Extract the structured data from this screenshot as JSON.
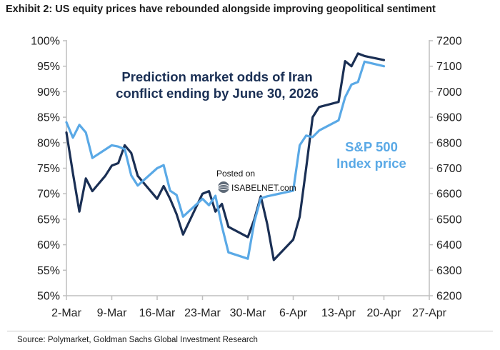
{
  "page": {
    "title": "Exhibit 2: US equity prices have rebounded alongside improving geopolitical sentiment",
    "source": "Source: Polymarket, Goldman Sachs Global Investment Research",
    "watermark": {
      "line1": "Posted on",
      "line2": "ISABELNET.com"
    }
  },
  "chart_data": {
    "type": "line",
    "title": "",
    "xlabel": "",
    "ylabel": "",
    "x_ticks": [
      "2-Mar",
      "9-Mar",
      "16-Mar",
      "23-Mar",
      "30-Mar",
      "6-Apr",
      "13-Apr",
      "20-Apr",
      "27-Apr"
    ],
    "x_range_days_from_2_Mar": [
      0,
      56
    ],
    "y_left": {
      "ticks": [
        "50%",
        "55%",
        "60%",
        "65%",
        "70%",
        "75%",
        "80%",
        "85%",
        "90%",
        "95%",
        "100%"
      ],
      "range": [
        50,
        100
      ],
      "unit": "%"
    },
    "y_right": {
      "ticks": [
        "6200",
        "6300",
        "6400",
        "6500",
        "6600",
        "6700",
        "6800",
        "6900",
        "7000",
        "7100",
        "7200"
      ],
      "range": [
        6200,
        7200
      ]
    },
    "grid": false,
    "annotations": [
      {
        "lines": [
          "Prediction market odds of Iran",
          "conflict ending by June 30, 2026"
        ],
        "series": 0
      },
      {
        "lines": [
          "S&P 500",
          "Index price"
        ],
        "series": 1
      }
    ],
    "series": [
      {
        "name": "Prediction market odds of Iran conflict ending by June 30, 2026",
        "axis": "left",
        "color": "#1a2f54",
        "x": [
          "2-Mar",
          "3-Mar",
          "4-Mar",
          "5-Mar",
          "6-Mar",
          "8-Mar",
          "9-Mar",
          "10-Mar",
          "11-Mar",
          "12-Mar",
          "13-Mar",
          "16-Mar",
          "17-Mar",
          "18-Mar",
          "19-Mar",
          "20-Mar",
          "23-Mar",
          "24-Mar",
          "25-Mar",
          "26-Mar",
          "27-Mar",
          "30-Mar",
          "31-Mar",
          "1-Apr",
          "2-Apr",
          "3-Apr",
          "6-Apr",
          "7-Apr",
          "8-Apr",
          "9-Apr",
          "10-Apr",
          "13-Apr",
          "14-Apr",
          "15-Apr",
          "16-Apr",
          "17-Apr",
          "20-Apr"
        ],
        "values": [
          82,
          74,
          66.5,
          73,
          70.5,
          73.5,
          75.5,
          76,
          79.5,
          78,
          73.5,
          69,
          71.5,
          69,
          66,
          62,
          70,
          70.5,
          66.5,
          68,
          63.5,
          61.5,
          65,
          69.5,
          64,
          57,
          61,
          65.5,
          75,
          85,
          87,
          88,
          96,
          95,
          97.5,
          97,
          96.2
        ]
      },
      {
        "name": "S&P 500 Index price",
        "axis": "right",
        "color": "#5aa9e6",
        "x": [
          "2-Mar",
          "3-Mar",
          "4-Mar",
          "5-Mar",
          "6-Mar",
          "9-Mar",
          "10-Mar",
          "11-Mar",
          "12-Mar",
          "13-Mar",
          "16-Mar",
          "17-Mar",
          "18-Mar",
          "19-Mar",
          "20-Mar",
          "23-Mar",
          "24-Mar",
          "25-Mar",
          "26-Mar",
          "27-Mar",
          "30-Mar",
          "31-Mar",
          "1-Apr",
          "2-Apr",
          "6-Apr",
          "7-Apr",
          "8-Apr",
          "9-Apr",
          "10-Apr",
          "13-Apr",
          "14-Apr",
          "15-Apr",
          "16-Apr",
          "17-Apr",
          "20-Apr"
        ],
        "values": [
          6880,
          6820,
          6870,
          6840,
          6740,
          6790,
          6785,
          6775,
          6672,
          6632,
          6700,
          6712,
          6612,
          6595,
          6510,
          6580,
          6555,
          6592,
          6472,
          6370,
          6345,
          6490,
          6582,
          6590,
          6612,
          6790,
          6828,
          6822,
          6848,
          6888,
          6978,
          7028,
          7038,
          7118,
          7100
        ]
      }
    ]
  }
}
